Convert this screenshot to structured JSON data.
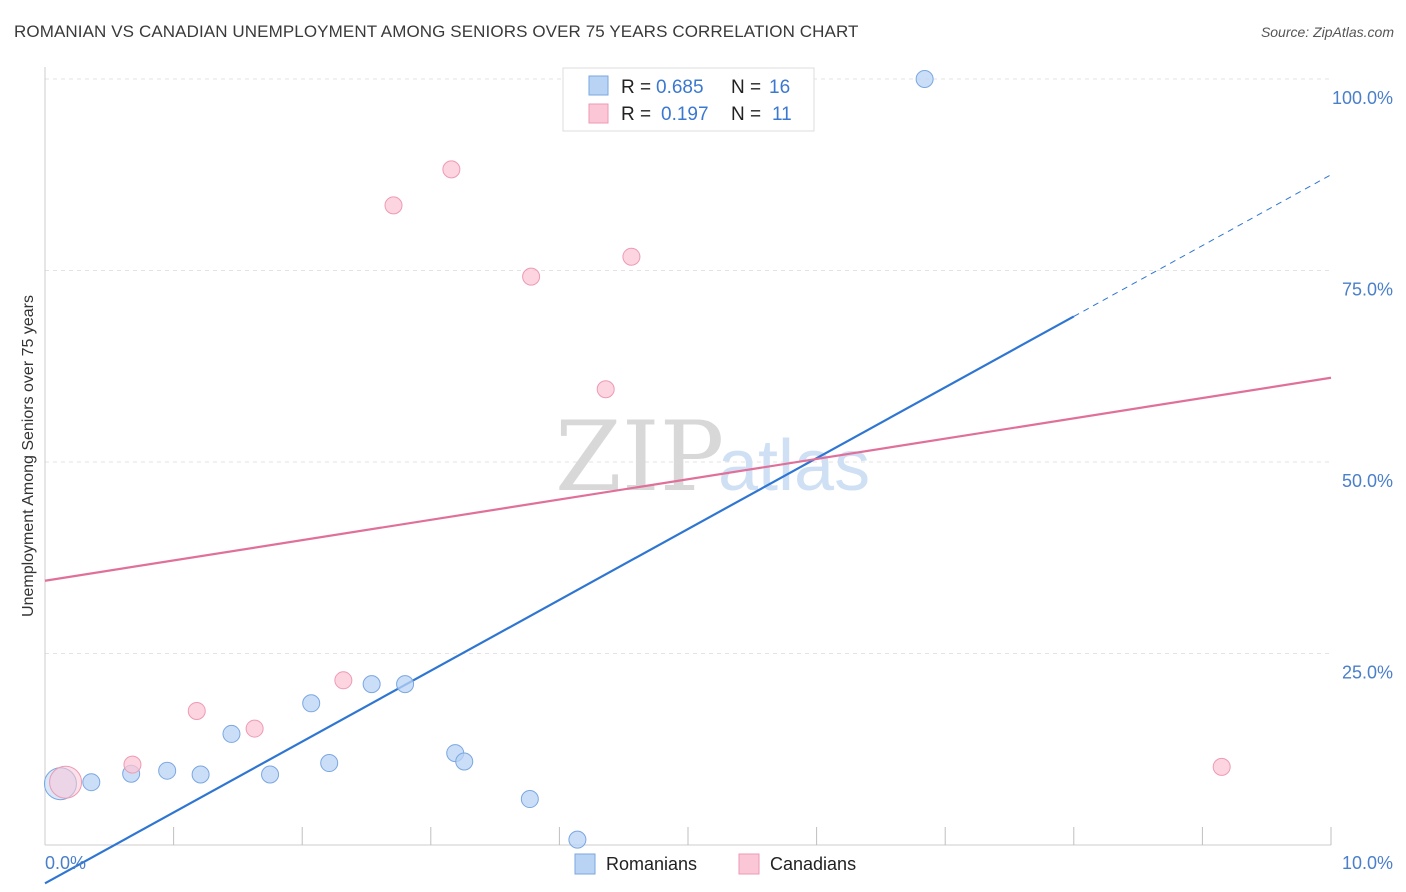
{
  "header": {
    "title": "ROMANIAN VS CANADIAN UNEMPLOYMENT AMONG SENIORS OVER 75 YEARS CORRELATION CHART",
    "source": "Source: ZipAtlas.com"
  },
  "watermark": {
    "zip": "ZIP",
    "atlas": "atlas"
  },
  "colors": {
    "romanians_fill": "#b9d3f5",
    "romanians_stroke": "#7aa7e0",
    "romanians_line": "#2f76d2",
    "canadians_fill": "#fbc7d6",
    "canadians_stroke": "#ee9ab4",
    "canadians_line": "#e0709a",
    "grid": "#e3e3e3",
    "tick_label": "#4a7fc9"
  },
  "legend": {
    "rows": [
      {
        "r_label": "R =",
        "r_value": "0.685",
        "n_label": "N =",
        "n_value": "16"
      },
      {
        "r_label": "R =",
        "r_value": "0.197",
        "n_label": "N =",
        "n_value": "11"
      }
    ]
  },
  "chart_data": {
    "type": "scatter",
    "title": "ROMANIAN VS CANADIAN UNEMPLOYMENT AMONG SENIORS OVER 75 YEARS CORRELATION CHART",
    "xlabel": "",
    "ylabel": "Unemployment Among Seniors over 75 years",
    "xlim": [
      0,
      10
    ],
    "ylim": [
      0,
      100
    ],
    "x_tick_labels": [
      "0.0%",
      "10.0%"
    ],
    "y_ticks": [
      25,
      50,
      75,
      100
    ],
    "y_tick_labels": [
      "25.0%",
      "50.0%",
      "75.0%",
      "100.0%"
    ],
    "grid": true,
    "legend_position": "bottom",
    "series": [
      {
        "name": "Romanians",
        "points": [
          {
            "x": 0.12,
            "y": 8.0,
            "big": true
          },
          {
            "x": 0.36,
            "y": 8.2
          },
          {
            "x": 0.67,
            "y": 9.3
          },
          {
            "x": 0.95,
            "y": 9.7
          },
          {
            "x": 1.21,
            "y": 9.2
          },
          {
            "x": 1.45,
            "y": 14.5
          },
          {
            "x": 1.75,
            "y": 9.2
          },
          {
            "x": 2.07,
            "y": 18.5
          },
          {
            "x": 2.21,
            "y": 10.7
          },
          {
            "x": 2.54,
            "y": 21.0
          },
          {
            "x": 2.8,
            "y": 21.0
          },
          {
            "x": 3.19,
            "y": 12.0
          },
          {
            "x": 3.26,
            "y": 10.9
          },
          {
            "x": 3.77,
            "y": 6.0
          },
          {
            "x": 4.14,
            "y": 0.7
          },
          {
            "x": 6.84,
            "y": 100.0
          }
        ],
        "trend": {
          "x0": 0.0,
          "y0": -5.0,
          "x1": 8.0,
          "y1": 69.0,
          "dash_to_x": 10.0,
          "dash_to_y": 87.5
        }
      },
      {
        "name": "Canadians",
        "points": [
          {
            "x": 0.16,
            "y": 8.2,
            "big": true
          },
          {
            "x": 0.68,
            "y": 10.5
          },
          {
            "x": 1.18,
            "y": 17.5
          },
          {
            "x": 1.63,
            "y": 15.2
          },
          {
            "x": 2.32,
            "y": 21.5
          },
          {
            "x": 2.71,
            "y": 83.5
          },
          {
            "x": 3.16,
            "y": 88.2
          },
          {
            "x": 3.78,
            "y": 74.2
          },
          {
            "x": 4.36,
            "y": 59.5
          },
          {
            "x": 4.56,
            "y": 76.8
          },
          {
            "x": 9.15,
            "y": 10.2
          }
        ],
        "trend": {
          "x0": 0.0,
          "y0": 34.5,
          "x1": 10.0,
          "y1": 61.0
        }
      }
    ]
  },
  "bottom_legend": {
    "items": [
      "Romanians",
      "Canadians"
    ]
  }
}
